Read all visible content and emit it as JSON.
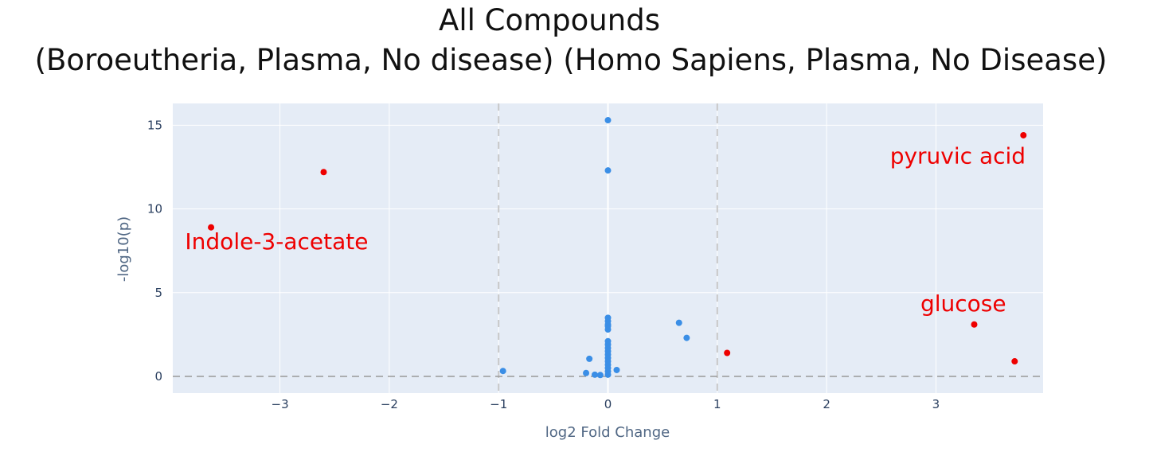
{
  "chart_data": {
    "type": "scatter",
    "title_lines": [
      "All Compounds",
      "(Boroeutheria, Plasma, No disease)   (Homo Sapiens, Plasma, No Disease)"
    ],
    "xlabel": "log2 Fold Change",
    "ylabel": "-log10(p)",
    "xlim": [
      -3.98,
      3.98
    ],
    "ylim": [
      -1,
      16.3
    ],
    "x_ticks": [
      -3,
      -2,
      -1,
      0,
      1,
      2,
      3
    ],
    "x_tick_labels": [
      "−3",
      "−2",
      "−1",
      "0",
      "1",
      "2",
      "3"
    ],
    "y_ticks": [
      0,
      5,
      10,
      15
    ],
    "y_tick_labels": [
      "0",
      "5",
      "10",
      "15"
    ],
    "threshold_lines": {
      "x": [
        -1,
        1
      ],
      "y": 0
    },
    "colors": {
      "plot_background": "#e5ecf6",
      "grid": "#ffffff",
      "not_significant": "#3a8ee6",
      "significant": "#ee0000",
      "threshold": "#999999"
    },
    "series": [
      {
        "color": "not_significant",
        "points": [
          [
            0.0,
            15.3
          ],
          [
            0.0,
            12.3
          ],
          [
            0.0,
            3.5
          ],
          [
            0.0,
            3.3
          ],
          [
            0.0,
            3.1
          ],
          [
            0.0,
            3.0
          ],
          [
            0.0,
            2.8
          ],
          [
            0.0,
            2.1
          ],
          [
            0.0,
            1.9
          ],
          [
            0.0,
            1.7
          ],
          [
            0.0,
            1.5
          ],
          [
            0.0,
            1.3
          ],
          [
            0.0,
            1.1
          ],
          [
            0.0,
            0.9
          ],
          [
            0.0,
            0.7
          ],
          [
            0.0,
            0.5
          ],
          [
            0.0,
            0.3
          ],
          [
            0.0,
            0.1
          ],
          [
            0.65,
            3.2
          ],
          [
            0.72,
            2.3
          ],
          [
            -0.96,
            0.32
          ],
          [
            -0.17,
            1.05
          ],
          [
            -0.2,
            0.2
          ],
          [
            -0.12,
            0.1
          ],
          [
            -0.07,
            0.08
          ],
          [
            0.08,
            0.38
          ]
        ]
      },
      {
        "color": "significant",
        "points": [
          [
            -2.6,
            12.2
          ],
          [
            -3.63,
            8.9
          ],
          [
            3.8,
            14.4
          ],
          [
            3.35,
            3.1
          ],
          [
            3.72,
            0.9
          ],
          [
            1.09,
            1.4
          ]
        ]
      }
    ],
    "annotations": [
      {
        "text": "pyruvic acid",
        "x": 3.2,
        "y": 12.7,
        "color": "significant"
      },
      {
        "text": "Indole-3-acetate",
        "x": -3.03,
        "y": 7.6,
        "color": "significant"
      },
      {
        "text": "glucose",
        "x": 3.25,
        "y": 3.9,
        "color": "significant"
      }
    ]
  }
}
